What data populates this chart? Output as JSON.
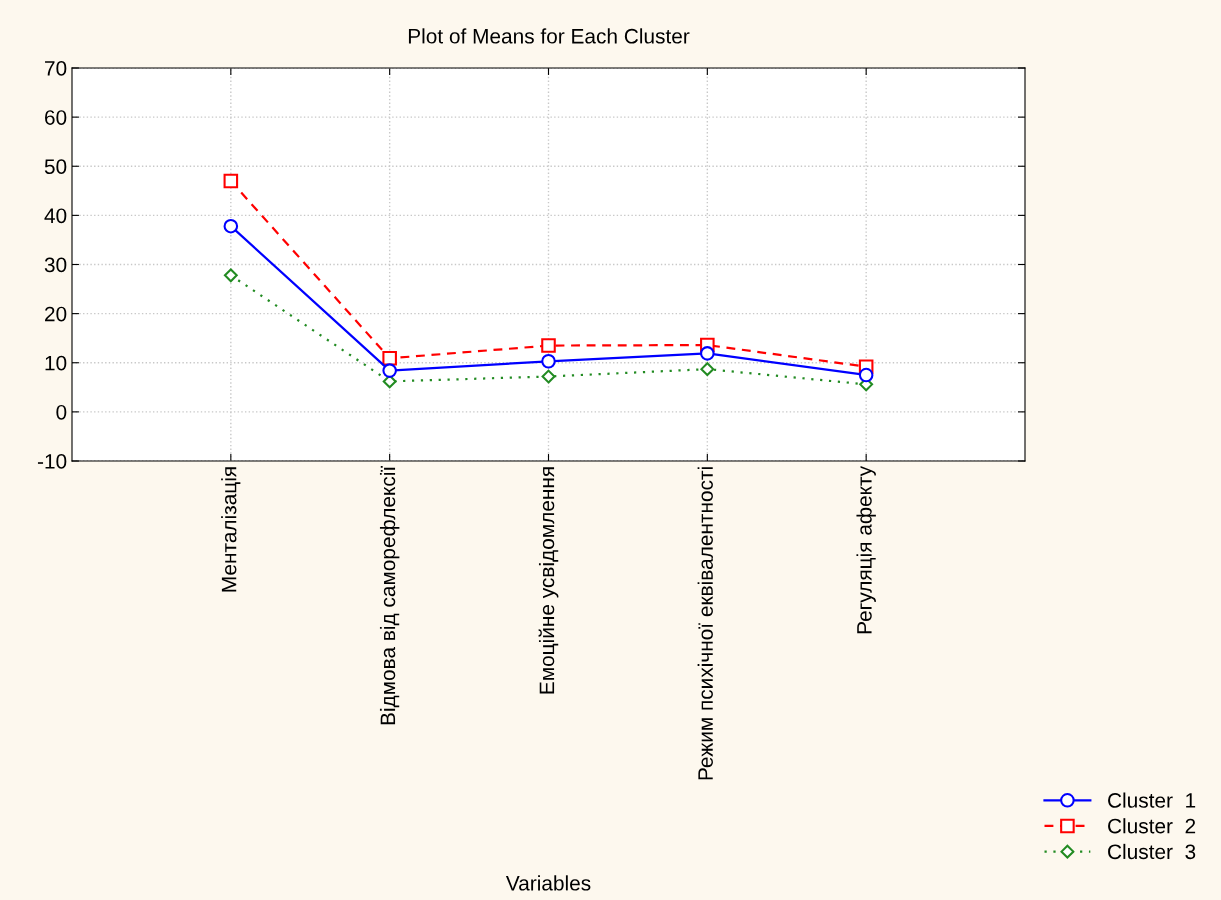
{
  "chart_data": {
    "type": "line",
    "title": "Plot of Means for Each Cluster",
    "xlabel": "Variables",
    "categories": [
      "Менталізація",
      "Відмова від саморефлексії",
      "Емоційне усвідомлення",
      "Режим психічної еквівалентності",
      "Регуляція афекту"
    ],
    "series": [
      {
        "name": "Cluster  1",
        "color": "#0000ff",
        "marker": "circle",
        "line_style": "solid",
        "values": [
          37.8,
          8.4,
          10.3,
          11.9,
          7.5
        ]
      },
      {
        "name": "Cluster  2",
        "color": "#ff0000",
        "marker": "square",
        "line_style": "dashed",
        "values": [
          47,
          10.9,
          13.5,
          13.6,
          9.2
        ]
      },
      {
        "name": "Cluster  3",
        "color": "#228b22",
        "marker": "diamond",
        "line_style": "dotted",
        "values": [
          27.8,
          6.2,
          7.2,
          8.7,
          5.6
        ]
      }
    ],
    "ylim": [
      -10,
      70
    ],
    "yticks": [
      -10,
      0,
      10,
      20,
      30,
      40,
      50,
      60,
      70
    ],
    "grid": true,
    "legend": "bottom right"
  }
}
